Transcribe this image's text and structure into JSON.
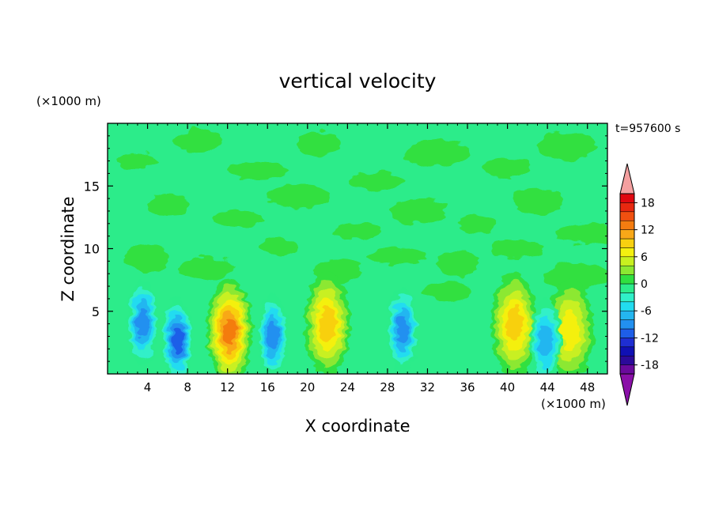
{
  "chart_data": {
    "type": "heatmap",
    "title": "vertical velocity",
    "xlabel": "X coordinate",
    "ylabel": "Z coordinate",
    "x_unit_label": "(×1000 m)",
    "z_unit_label": "(×1000 m)",
    "time_label": "t=957600 s",
    "xlim": [
      0,
      50
    ],
    "ylim": [
      0,
      20
    ],
    "x_ticks": [
      4,
      8,
      12,
      16,
      20,
      24,
      28,
      32,
      36,
      40,
      44,
      48
    ],
    "y_ticks": [
      5,
      10,
      15
    ],
    "grid": false,
    "colorbar": {
      "levels": [
        -20,
        -18,
        -16,
        -14,
        -12,
        -10,
        -8,
        -6,
        -4,
        -2,
        0,
        2,
        4,
        6,
        8,
        10,
        12,
        14,
        16,
        18,
        20
      ],
      "tick_labels": [
        18,
        12,
        6,
        0,
        -6,
        -12,
        -18
      ],
      "colors": [
        "#6a0a9c",
        "#2c0a9a",
        "#1010b4",
        "#1e2ed2",
        "#1e5ee8",
        "#2290f0",
        "#24b6f0",
        "#22dcf0",
        "#30f0c8",
        "#2cec8a",
        "#30e040",
        "#8ce832",
        "#c8f020",
        "#f4f010",
        "#f8d010",
        "#f8a818",
        "#f47c10",
        "#f05010",
        "#e82810",
        "#e00810"
      ],
      "over_color": "#f4a0a0",
      "under_color": "#8a10a8"
    },
    "features": [
      {
        "kind": "updraft",
        "x": 12.2,
        "z": 3.4,
        "peak": 14
      },
      {
        "kind": "updraft",
        "x": 22.0,
        "z": 4.0,
        "peak": 9
      },
      {
        "kind": "updraft",
        "x": 40.7,
        "z": 3.9,
        "peak": 9
      },
      {
        "kind": "updraft",
        "x": 46.3,
        "z": 3.5,
        "peak": 7
      },
      {
        "kind": "downdraft",
        "x": 3.5,
        "z": 4.1,
        "peak": -10
      },
      {
        "kind": "downdraft",
        "x": 7.0,
        "z": 2.7,
        "peak": -12
      },
      {
        "kind": "downdraft",
        "x": 16.5,
        "z": 3.0,
        "peak": -10
      },
      {
        "kind": "downdraft",
        "x": 29.5,
        "z": 3.6,
        "peak": -9
      },
      {
        "kind": "downdraft",
        "x": 43.8,
        "z": 2.6,
        "peak": -8
      }
    ]
  }
}
